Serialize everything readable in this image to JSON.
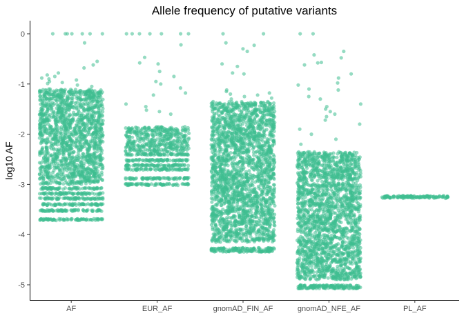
{
  "chart_data": {
    "type": "scatter",
    "title": "Allele frequency of putative variants",
    "xlabel": "",
    "ylabel": "log10 AF",
    "categories": [
      "AF",
      "EUR_AF",
      "gnomAD_FIN_AF",
      "gnomAD_NFE_AF",
      "PL_AF"
    ],
    "ylim": [
      -5.3,
      0.1
    ],
    "yticks": [
      0,
      -1,
      -2,
      -3,
      -4,
      -5
    ],
    "ytick_labels": [
      "0",
      "-1",
      "-2",
      "-3",
      "-4",
      "-5"
    ],
    "grid": false,
    "legend": "none",
    "point_color": "#3EBD8F",
    "series": [
      {
        "category": "AF",
        "dense_range": [
          -3.0,
          -1.1
        ],
        "bands": [
          -3.08,
          -3.18,
          -3.28,
          -3.4,
          -3.52,
          -3.7
        ],
        "sparse_points": [
          0,
          0,
          0,
          0,
          0,
          0,
          0,
          -0.18,
          -0.55,
          -0.62,
          -0.68,
          -0.78,
          -0.82,
          -0.85,
          -0.88,
          -0.9,
          -0.92,
          -0.95,
          -0.97,
          -0.99,
          -1.02,
          -1.05
        ]
      },
      {
        "category": "EUR_AF",
        "dense_range": [
          -2.35,
          -1.85
        ],
        "bands": [
          -2.4,
          -2.52,
          -2.62,
          -2.7,
          -2.88,
          -3.0
        ],
        "sparse_points": [
          0,
          0,
          0,
          0,
          0,
          0,
          0,
          -0.22,
          -0.47,
          -0.58,
          -0.6,
          -0.75,
          -0.85,
          -0.95,
          -1.0,
          -1.08,
          -1.18,
          -1.22,
          -1.4,
          -1.45,
          -1.52,
          -1.55,
          -1.6
        ]
      },
      {
        "category": "gnomAD_FIN_AF",
        "dense_range": [
          -4.15,
          -1.35
        ],
        "bands": [
          -4.33,
          -4.28
        ],
        "sparse_points": [
          0,
          0,
          -0.18,
          -0.23,
          -0.3,
          -0.35,
          -0.6,
          -0.65,
          -0.78,
          -0.8,
          -1.12,
          -1.15,
          -1.18,
          -1.2,
          -1.22,
          -1.25,
          -1.28,
          -1.3
        ]
      },
      {
        "category": "gnomAD_NFE_AF",
        "dense_range": [
          -4.9,
          -2.35
        ],
        "bands": [
          -5.02,
          -5.06
        ],
        "sparse_points": [
          0,
          0,
          -0.35,
          -0.42,
          -0.48,
          -0.57,
          -0.58,
          -0.62,
          -0.8,
          -0.88,
          -0.98,
          -1.02,
          -1.1,
          -1.12,
          -1.25,
          -1.3,
          -1.4,
          -1.45,
          -1.5,
          -1.55,
          -1.6,
          -1.65,
          -1.72,
          -1.8,
          -1.9,
          -2.0,
          -2.1,
          -2.2
        ]
      },
      {
        "category": "PL_AF",
        "dense_range": [
          -3.28,
          -3.22
        ],
        "bands": [
          -3.25
        ],
        "sparse_points": []
      }
    ]
  }
}
